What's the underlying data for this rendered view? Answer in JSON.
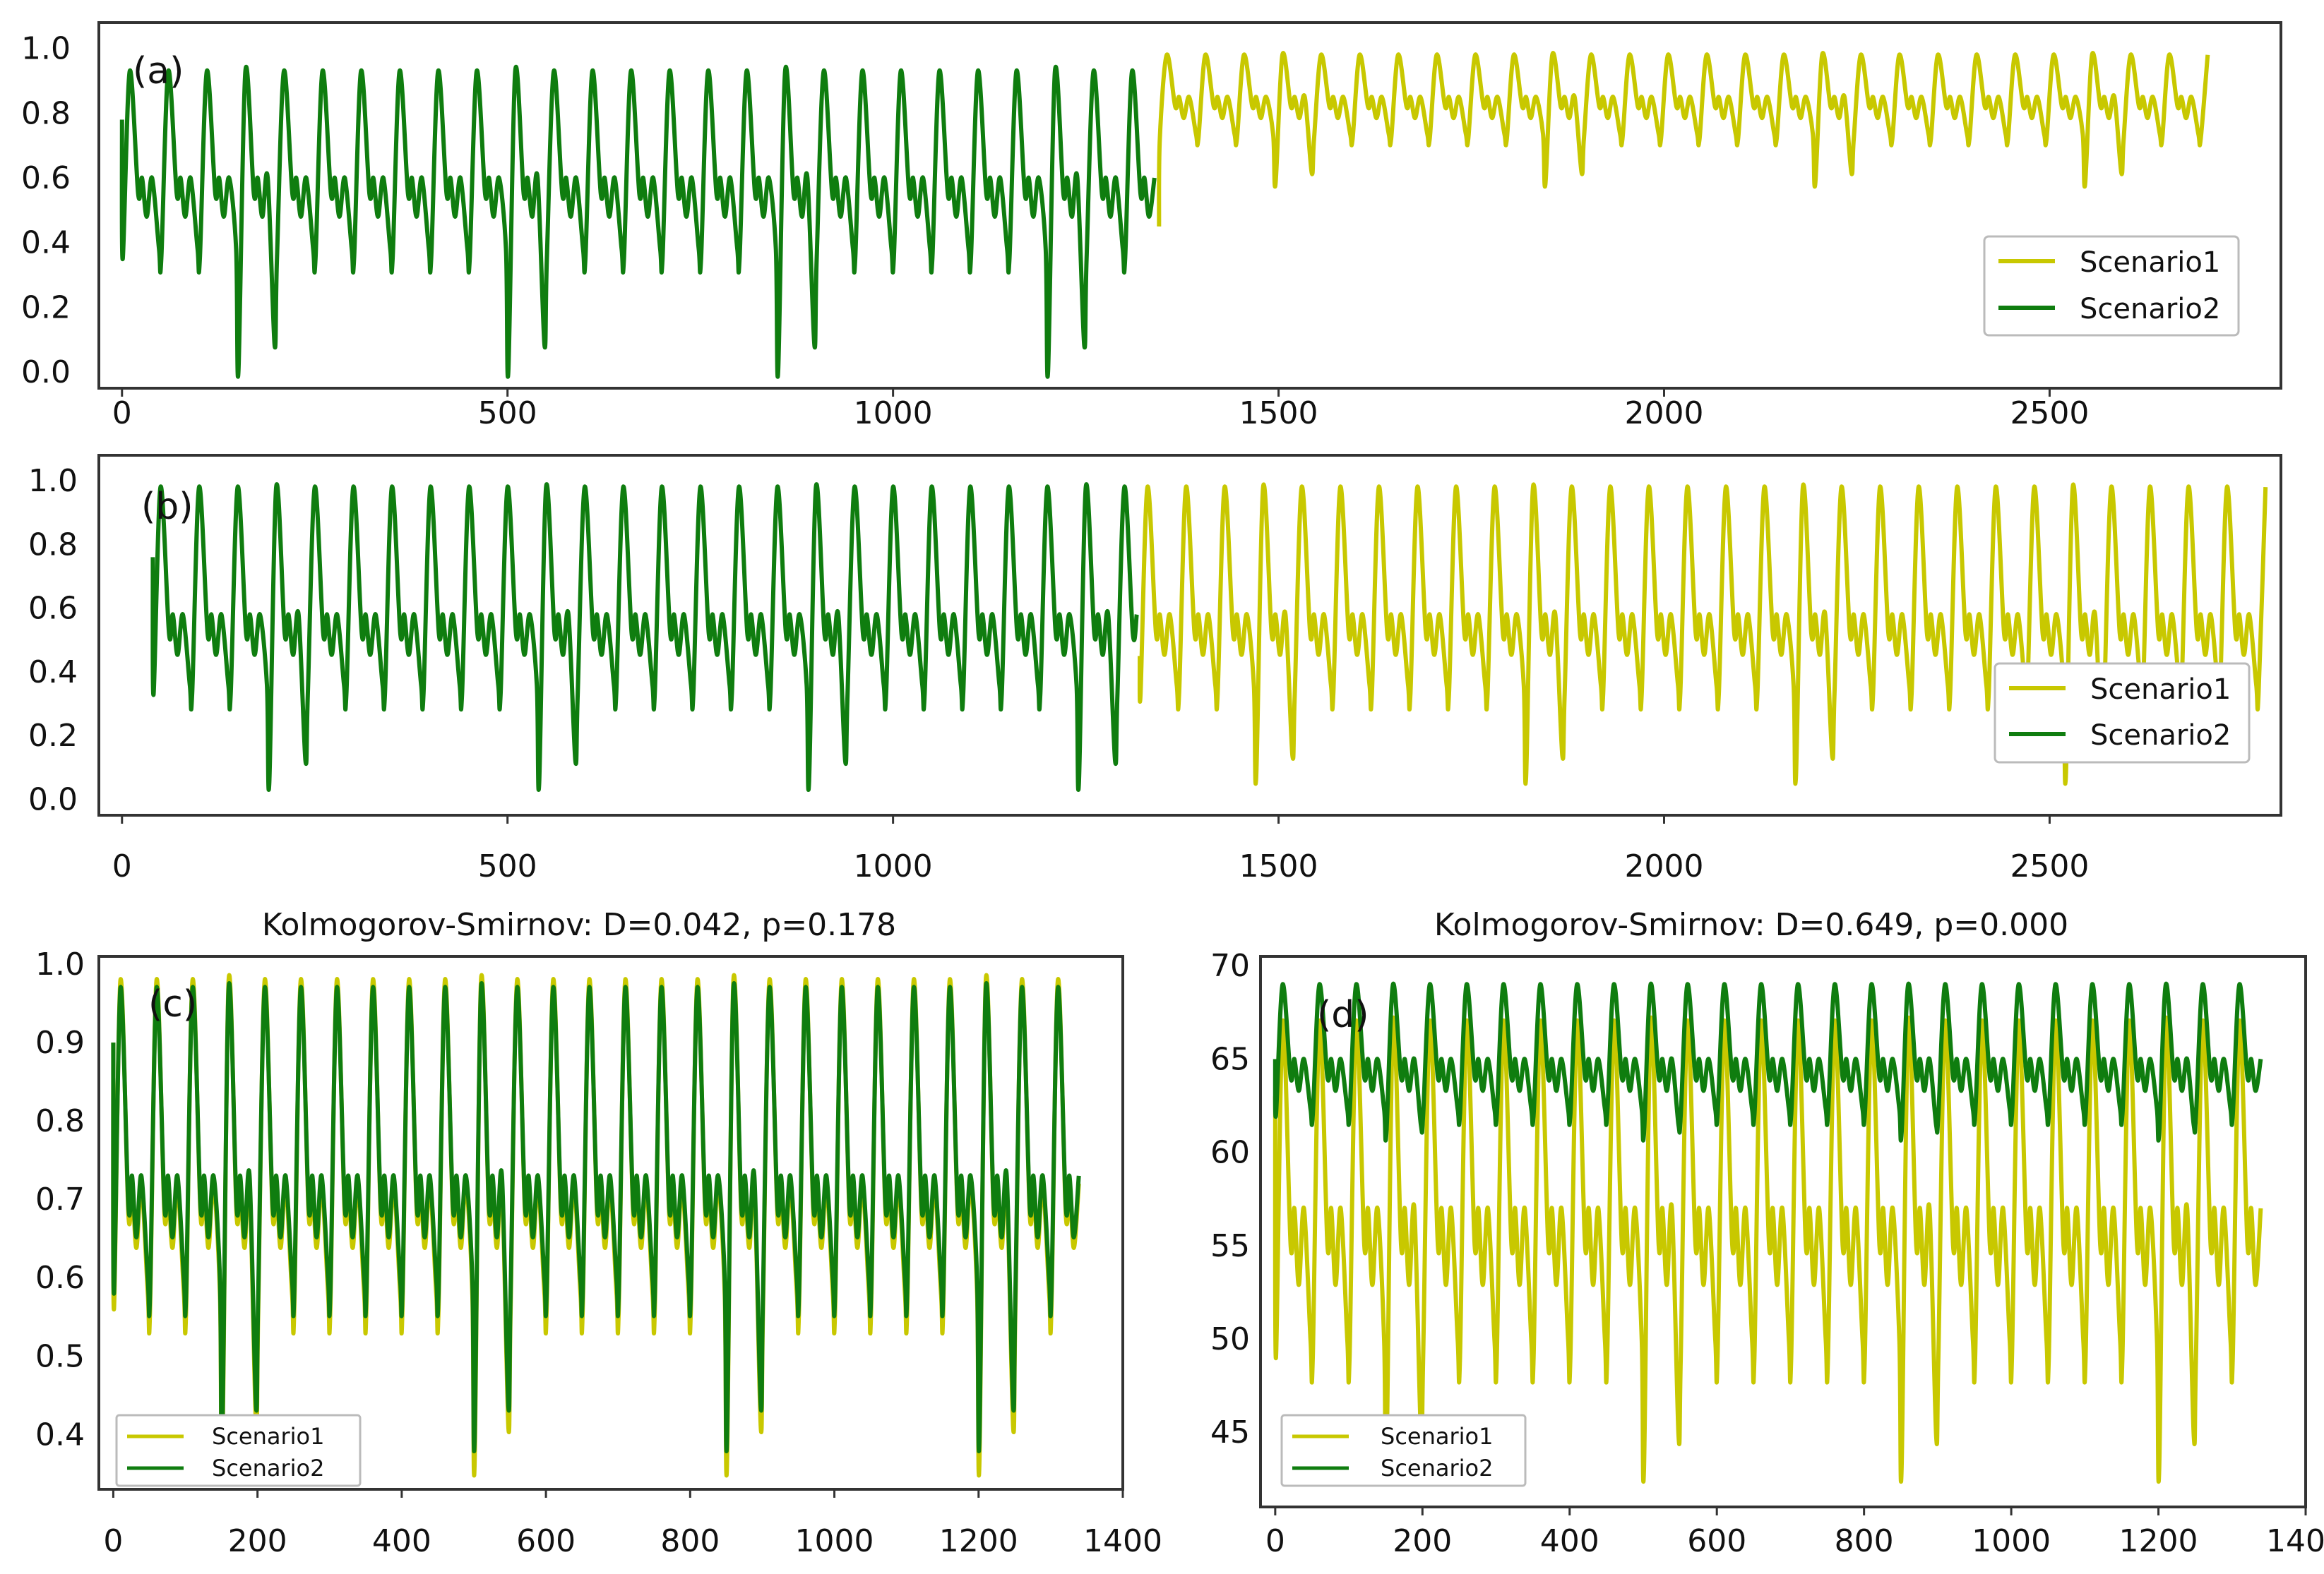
{
  "colors": {
    "scenario1": "#c8c800",
    "scenario2": "#0f7d0f",
    "frame": "#333333"
  },
  "chart_data": [
    {
      "id": "a",
      "type": "line",
      "panel_label": "(a)",
      "title": "",
      "xlabel": "",
      "ylabel": "",
      "xlim": [
        -30,
        2800
      ],
      "ylim": [
        -0.05,
        1.08
      ],
      "x_ticks": [
        "0",
        "500",
        "1000",
        "1500",
        "2000",
        "2500"
      ],
      "x_tick_values": [
        0,
        500,
        1000,
        1500,
        2000,
        2500
      ],
      "y_ticks": [
        "1.0",
        "0.8",
        "0.6",
        "0.4",
        "0.2",
        "0.0"
      ],
      "y_tick_values": [
        1.0,
        0.8,
        0.6,
        0.4,
        0.2,
        0.0
      ],
      "legend": {
        "placement": "right",
        "entries": [
          "Scenario1",
          "Scenario2"
        ]
      },
      "series": [
        {
          "name": "Scenario2",
          "color_key": "scenario2",
          "x_range": [
            0,
            1345
          ],
          "period": 50,
          "peak": 0.93,
          "mid": 0.55,
          "shoulder": 0.6,
          "trough": 0.35,
          "deep_trough": 0.0,
          "deep_every": 7,
          "start_value": 0.78
        },
        {
          "name": "Scenario1",
          "color_key": "scenario1",
          "x_range": [
            1345,
            2705
          ],
          "period": 50,
          "peak": 0.98,
          "mid": 0.82,
          "shoulder": 0.85,
          "trough": 0.72,
          "deep_trough": 0.58,
          "deep_every": 7,
          "start_value": 0.45
        }
      ]
    },
    {
      "id": "b",
      "type": "line",
      "panel_label": "(b)",
      "title": "",
      "xlabel": "",
      "ylabel": "",
      "xlim": [
        -30,
        2800
      ],
      "ylim": [
        -0.05,
        1.08
      ],
      "x_ticks": [
        "0",
        "500",
        "1000",
        "1500",
        "2000",
        "2500"
      ],
      "x_tick_values": [
        0,
        500,
        1000,
        1500,
        2000,
        2500
      ],
      "y_ticks": [
        "1.0",
        "0.8",
        "0.6",
        "0.4",
        "0.2",
        "0.0"
      ],
      "y_tick_values": [
        1.0,
        0.8,
        0.6,
        0.4,
        0.2,
        0.0
      ],
      "legend": {
        "placement": "right",
        "entries": [
          "Scenario1",
          "Scenario2"
        ]
      },
      "series": [
        {
          "name": "Scenario2",
          "color_key": "scenario2",
          "x_range": [
            40,
            1320
          ],
          "period": 50,
          "peak": 0.98,
          "mid": 0.52,
          "shoulder": 0.58,
          "trough": 0.33,
          "deep_trough": 0.05,
          "deep_every": 7,
          "start_value": 0.76
        },
        {
          "name": "Scenario1",
          "color_key": "scenario1",
          "x_range": [
            1320,
            2780
          ],
          "period": 50,
          "peak": 0.98,
          "mid": 0.52,
          "shoulder": 0.58,
          "trough": 0.33,
          "deep_trough": 0.07,
          "deep_every": 7,
          "start_value": 0.45
        }
      ]
    },
    {
      "id": "c",
      "type": "line",
      "panel_label": "(c)",
      "title": "Kolmogorov-Smirnov: D=0.042, p=0.178",
      "xlabel": "",
      "ylabel": "",
      "xlim": [
        -20,
        1400
      ],
      "ylim": [
        0.33,
        1.01
      ],
      "x_ticks": [
        "0",
        "200",
        "400",
        "600",
        "800",
        "1000",
        "1200",
        "1400"
      ],
      "x_tick_values": [
        0,
        200,
        400,
        600,
        800,
        1000,
        1200,
        1400
      ],
      "y_ticks": [
        "1.0",
        "0.9",
        "0.8",
        "0.7",
        "0.6",
        "0.5",
        "0.4"
      ],
      "y_tick_values": [
        1.0,
        0.9,
        0.8,
        0.7,
        0.6,
        0.5,
        0.4
      ],
      "legend": {
        "placement": "bottom-left",
        "entries": [
          "Scenario1",
          "Scenario2"
        ]
      },
      "series": [
        {
          "name": "Scenario1",
          "color_key": "scenario1",
          "x_range": [
            0,
            1345
          ],
          "period": 50,
          "peak": 0.98,
          "mid": 0.68,
          "shoulder": 0.72,
          "trough": 0.56,
          "deep_trough": 0.36,
          "deep_every": 7,
          "start_value": 0.9
        },
        {
          "name": "Scenario2",
          "color_key": "scenario2",
          "x_range": [
            0,
            1345
          ],
          "period": 50,
          "peak": 0.97,
          "mid": 0.69,
          "shoulder": 0.73,
          "trough": 0.58,
          "deep_trough": 0.39,
          "deep_every": 7,
          "start_value": 0.9
        }
      ]
    },
    {
      "id": "d",
      "type": "line",
      "panel_label": "(d)",
      "title": "Kolmogorov-Smirnov: D=0.649, p=0.000",
      "xlabel": "",
      "ylabel": "",
      "xlim": [
        -20,
        1400
      ],
      "ylim": [
        41,
        70.5
      ],
      "x_ticks": [
        "0",
        "200",
        "400",
        "600",
        "800",
        "1000",
        "1200",
        "1400"
      ],
      "x_tick_values": [
        0,
        200,
        400,
        600,
        800,
        1000,
        1200,
        1400
      ],
      "y_ticks": [
        "70",
        "65",
        "60",
        "55",
        "50",
        "45"
      ],
      "y_tick_values": [
        70,
        65,
        60,
        55,
        50,
        45
      ],
      "legend": {
        "placement": "bottom-left",
        "entries": [
          "Scenario1",
          "Scenario2"
        ]
      },
      "series": [
        {
          "name": "Scenario1",
          "color_key": "scenario1",
          "x_range": [
            0,
            1345
          ],
          "period": 50,
          "peak": 67,
          "mid": 55,
          "shoulder": 57,
          "trough": 49,
          "deep_trough": 43,
          "deep_every": 7,
          "start_value": 63
        },
        {
          "name": "Scenario2",
          "color_key": "scenario2",
          "x_range": [
            0,
            1345
          ],
          "period": 50,
          "peak": 69,
          "mid": 64,
          "shoulder": 65,
          "trough": 62,
          "deep_trough": 61,
          "deep_every": 7,
          "start_value": 65
        }
      ]
    }
  ]
}
